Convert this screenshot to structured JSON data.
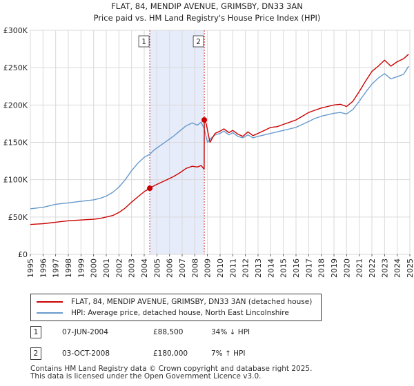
{
  "chart_data": {
    "type": "line",
    "title": "FLAT, 84, MENDIP AVENUE, GRIMSBY, DN33 3AN",
    "subtitle": "Price paid vs. HM Land Registry's House Price Index (HPI)",
    "xlim": [
      1995,
      2025
    ],
    "ylim": [
      0,
      300000
    ],
    "y_ticks": [
      0,
      50000,
      100000,
      150000,
      200000,
      250000,
      300000
    ],
    "y_tick_labels": [
      "£0",
      "£50K",
      "£100K",
      "£150K",
      "£200K",
      "£250K",
      "£300K"
    ],
    "x_ticks": [
      1995,
      1996,
      1997,
      1998,
      1999,
      2000,
      2001,
      2002,
      2003,
      2004,
      2005,
      2006,
      2007,
      2008,
      2009,
      2010,
      2011,
      2012,
      2013,
      2014,
      2015,
      2016,
      2017,
      2018,
      2019,
      2020,
      2021,
      2022,
      2023,
      2024,
      2025
    ],
    "x_tick_labels": [
      "1995",
      "1996",
      "1997",
      "1998",
      "1999",
      "2000",
      "2001",
      "2002",
      "2003",
      "2004",
      "2005",
      "2006",
      "2007",
      "2008",
      "2009",
      "2010",
      "2011",
      "2012",
      "2013",
      "2014",
      "2015",
      "2016",
      "2017",
      "2018",
      "2019",
      "2020",
      "2021",
      "2022",
      "2023",
      "2024",
      "2025"
    ],
    "grid": true,
    "shaded_region": [
      2004.44,
      2008.75
    ],
    "series": [
      {
        "name": "FLAT, 84, MENDIP AVENUE, GRIMSBY, DN33 3AN (detached house)",
        "color": "#cc0000",
        "x": [
          1995.0,
          1995.5,
          1996.0,
          1996.5,
          1997.0,
          1997.5,
          1998.0,
          1998.5,
          1999.0,
          1999.5,
          2000.0,
          2000.5,
          2001.0,
          2001.5,
          2002.0,
          2002.5,
          2003.0,
          2003.5,
          2004.0,
          2004.44,
          2004.44,
          2004.8,
          2005.3,
          2005.8,
          2006.3,
          2006.8,
          2007.3,
          2007.8,
          2008.2,
          2008.5,
          2008.74,
          2008.75,
          2008.9,
          2009.2,
          2009.6,
          2010.0,
          2010.3,
          2010.7,
          2011.0,
          2011.4,
          2011.8,
          2012.2,
          2012.6,
          2013.0,
          2013.5,
          2014.0,
          2014.5,
          2015.0,
          2015.5,
          2016.0,
          2016.5,
          2017.0,
          2017.5,
          2018.0,
          2018.5,
          2019.0,
          2019.5,
          2020.0,
          2020.5,
          2021.0,
          2021.5,
          2022.0,
          2022.5,
          2023.0,
          2023.5,
          2024.0,
          2024.5,
          2024.9
        ],
        "values": [
          40000,
          40500,
          41000,
          42000,
          43000,
          44000,
          45000,
          45500,
          46000,
          46500,
          47000,
          48000,
          50000,
          52000,
          56000,
          62000,
          70000,
          77000,
          84000,
          88500,
          88500,
          92000,
          96000,
          100000,
          104000,
          109000,
          115000,
          118000,
          117000,
          119000,
          114000,
          180000,
          175000,
          150000,
          162000,
          165000,
          168000,
          163000,
          166000,
          161000,
          158000,
          164000,
          159000,
          162000,
          166000,
          170000,
          171000,
          174000,
          177000,
          180000,
          185000,
          190000,
          193000,
          196000,
          198000,
          200000,
          201000,
          198000,
          205000,
          218000,
          232000,
          245000,
          252000,
          260000,
          252000,
          258000,
          262000,
          268000
        ]
      },
      {
        "name": "HPI: Average price, detached house, North East Lincolnshire",
        "color": "#6699cc",
        "x": [
          1995.0,
          1995.5,
          1996.0,
          1996.5,
          1997.0,
          1997.5,
          1998.0,
          1998.5,
          1999.0,
          1999.5,
          2000.0,
          2000.5,
          2001.0,
          2001.5,
          2002.0,
          2002.5,
          2003.0,
          2003.5,
          2004.0,
          2004.44,
          2004.8,
          2005.3,
          2005.8,
          2006.3,
          2006.8,
          2007.3,
          2007.8,
          2008.2,
          2008.5,
          2008.75,
          2009.0,
          2009.3,
          2009.6,
          2010.0,
          2010.3,
          2010.7,
          2011.0,
          2011.4,
          2011.8,
          2012.2,
          2012.6,
          2013.0,
          2013.5,
          2014.0,
          2014.5,
          2015.0,
          2015.5,
          2016.0,
          2016.5,
          2017.0,
          2017.5,
          2018.0,
          2018.5,
          2019.0,
          2019.5,
          2020.0,
          2020.5,
          2021.0,
          2021.5,
          2022.0,
          2022.5,
          2023.0,
          2023.5,
          2024.0,
          2024.5,
          2024.9
        ],
        "values": [
          61000,
          62000,
          63000,
          65000,
          67000,
          68000,
          69000,
          70000,
          71000,
          72000,
          73000,
          75000,
          78000,
          83000,
          90000,
          100000,
          112000,
          122000,
          130000,
          134000,
          140000,
          146000,
          152000,
          158000,
          165000,
          172000,
          176000,
          173000,
          177000,
          168000,
          150000,
          156000,
          160000,
          162000,
          165000,
          160000,
          163000,
          158000,
          156000,
          160000,
          156000,
          158000,
          160000,
          162000,
          164000,
          166000,
          168000,
          170000,
          174000,
          178000,
          182000,
          185000,
          187000,
          189000,
          190000,
          188000,
          194000,
          205000,
          217000,
          228000,
          236000,
          242000,
          235000,
          238000,
          241000,
          252000
        ]
      }
    ],
    "markers": [
      {
        "label": "1",
        "x": 2004.44,
        "y": 88500
      },
      {
        "label": "2",
        "x": 2008.75,
        "y": 180000
      }
    ]
  },
  "legend": {
    "red": "FLAT, 84, MENDIP AVENUE, GRIMSBY, DN33 3AN (detached house)",
    "blue": "HPI: Average price, detached house, North East Lincolnshire"
  },
  "transactions": [
    {
      "num": "1",
      "date": "07-JUN-2004",
      "price": "£88,500",
      "hpi": "34% ↓ HPI"
    },
    {
      "num": "2",
      "date": "03-OCT-2008",
      "price": "£180,000",
      "hpi": "7% ↑ HPI"
    }
  ],
  "footer": {
    "line1": "Contains HM Land Registry data © Crown copyright and database right 2025.",
    "line2": "This data is licensed under the Open Government Licence v3.0."
  }
}
